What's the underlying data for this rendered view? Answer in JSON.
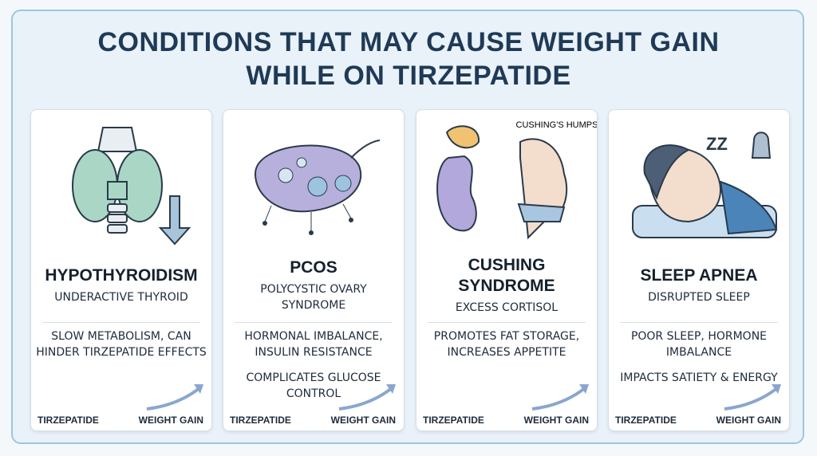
{
  "title_lines": [
    "CONDITIONS THAT MAY CAUSE WEIGHT GAIN",
    "WHILE ON TIRZEPATIDE"
  ],
  "cards": [
    {
      "title": "HYPOTHYROIDISM",
      "subtitle": "UNDERACTIVE THYROID",
      "details": [
        "SLOW METABOLISM, CAN HINDER TIRZEPATIDE EFFECTS"
      ],
      "footer_left": "TIRZEPATIDE",
      "footer_right": "WEIGHT GAIN"
    },
    {
      "title": "PCOS",
      "subtitle": "POLYCYSTIC OVARY SYNDROME",
      "details": [
        "HORMONAL IMBALANCE, INSULIN RESISTANCE",
        "COMPLICATES GLUCOSE CONTROL"
      ],
      "footer_left": "TIRZEPATIDE",
      "footer_right": "WEIGHT GAIN"
    },
    {
      "title": "CUSHING SYNDROME",
      "subtitle": "EXCESS CORTISOL",
      "illustration_label": "CUSHING'S HUMPS",
      "details": [
        "PROMOTES FAT STORAGE, INCREASES APPETITE"
      ],
      "footer_left": "TIRZEPATIDE",
      "footer_right": "WEIGHT GAIN"
    },
    {
      "title": "SLEEP APNEA",
      "subtitle": "DISRUPTED SLEEP",
      "illustration_label": "ZZ",
      "details": [
        "POOR SLEEP, HORMONE IMBALANCE",
        "IMPACTS SATIETY & ENERGY"
      ],
      "footer_left": "TIRZEPATIDE",
      "footer_right": "WEIGHT GAIN"
    }
  ]
}
